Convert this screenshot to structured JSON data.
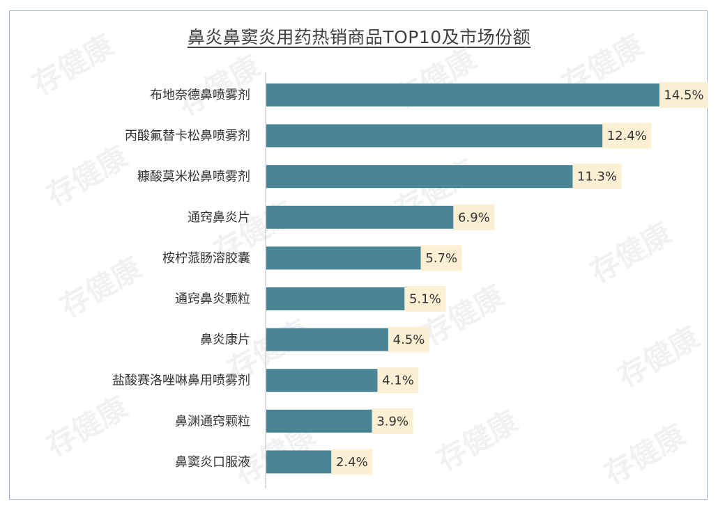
{
  "chart_data": {
    "type": "bar",
    "orientation": "horizontal",
    "title": "鼻炎鼻窦炎用药热销商品TOP10及市场份额",
    "categories": [
      "布地奈德鼻喷雾剂",
      "丙酸氟替卡松鼻喷雾剂",
      "糠酸莫米松鼻喷雾剂",
      "通窍鼻炎片",
      "桉柠蒎肠溶胶囊",
      "通窍鼻炎颗粒",
      "鼻炎康片",
      "盐酸赛洛唑啉鼻用喷雾剂",
      "鼻渊通窍颗粒",
      "鼻窦炎口服液"
    ],
    "values": [
      14.5,
      12.4,
      11.3,
      6.9,
      5.7,
      5.1,
      4.5,
      4.1,
      3.9,
      2.4
    ],
    "value_labels": [
      "14.5%",
      "12.4%",
      "11.3%",
      "6.9%",
      "5.7%",
      "5.1%",
      "4.5%",
      "4.1%",
      "3.9%",
      "2.4%"
    ],
    "unit": "%",
    "bar_color": "#4a8596",
    "label_bg_color": "#fbf0d3",
    "grid": false,
    "legend": "none"
  },
  "watermark_text": "存健康"
}
